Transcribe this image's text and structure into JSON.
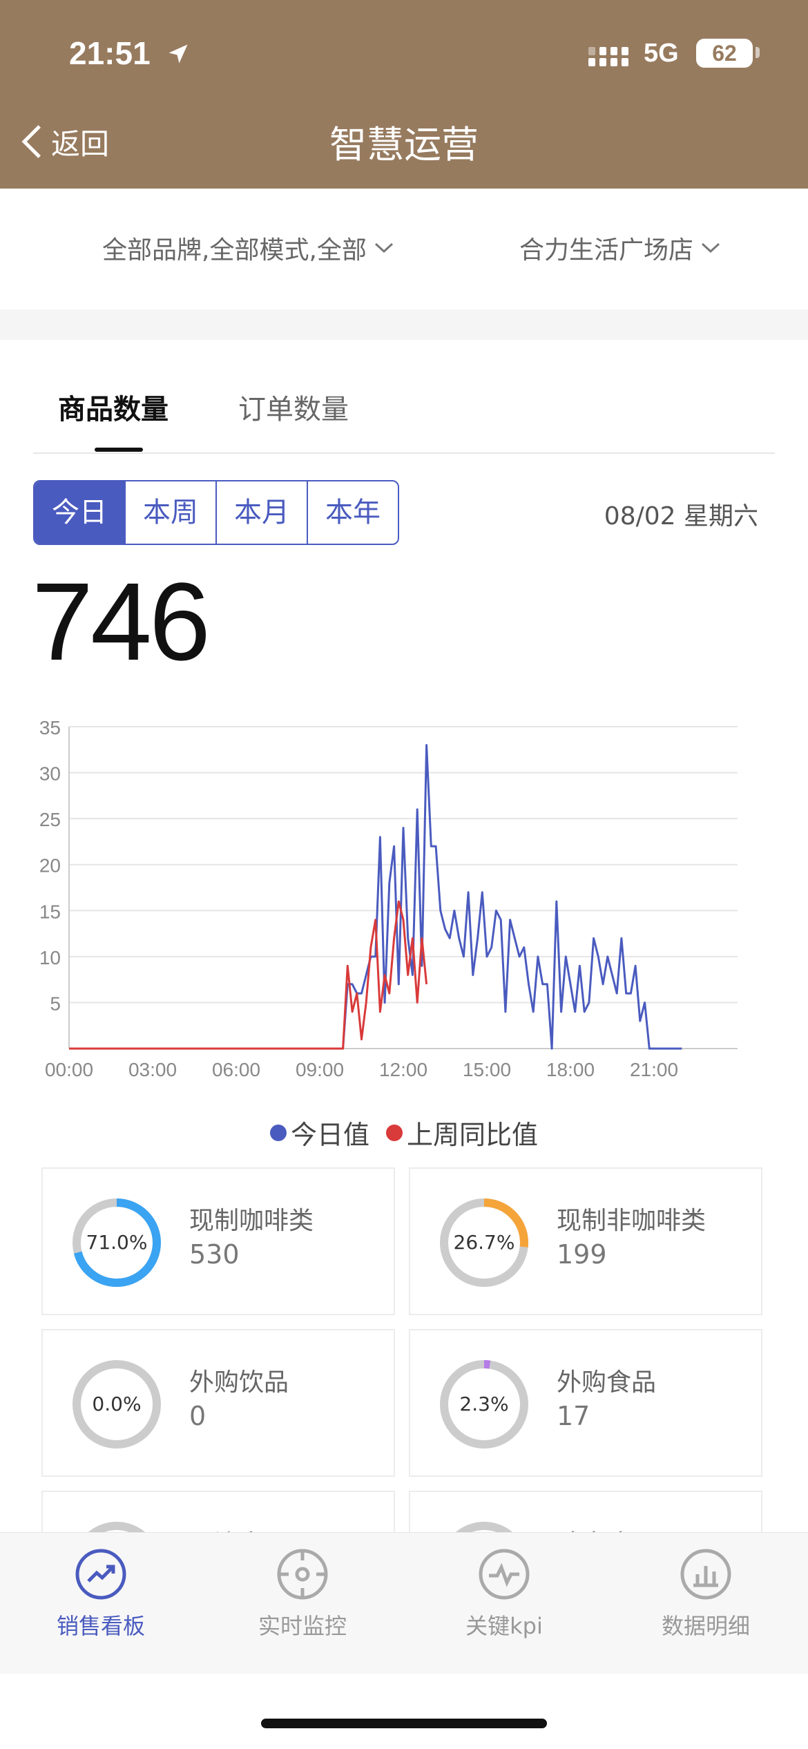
{
  "status_bar": {
    "time": "21:51",
    "network": "5G",
    "battery": "62"
  },
  "header": {
    "back_label": "返回",
    "title": "智慧运营"
  },
  "filters": {
    "brand": "全部品牌,全部模式,全部",
    "store": "合力生活广场店"
  },
  "tabs": [
    {
      "label": "商品数量",
      "active": true
    },
    {
      "label": "订单数量",
      "active": false
    }
  ],
  "periods": [
    {
      "label": "今日",
      "active": true
    },
    {
      "label": "本周",
      "active": false
    },
    {
      "label": "本月",
      "active": false
    },
    {
      "label": "本年",
      "active": false
    }
  ],
  "date": "08/02 星期六",
  "total": "746",
  "chart_data": {
    "type": "line",
    "y_ticks": [
      "35",
      "30",
      "25",
      "20",
      "15",
      "10",
      "5"
    ],
    "ylim": [
      0,
      35
    ],
    "x_ticks": [
      "00:00",
      "03:00",
      "06:00",
      "09:00",
      "12:00",
      "15:00",
      "18:00",
      "21:00"
    ],
    "xlim_minutes": [
      0,
      1440
    ],
    "legend": [
      "今日值",
      "上周同比值"
    ],
    "colors": {
      "today": "#4a5bbf",
      "last_week": "#d93a3a"
    },
    "series": [
      {
        "name": "今日值",
        "color": "#4a5bbf",
        "x": [
          "00:00",
          "09:50",
          "10:00",
          "10:10",
          "10:20",
          "10:30",
          "10:40",
          "10:50",
          "11:00",
          "11:10",
          "11:20",
          "11:30",
          "11:40",
          "11:50",
          "12:00",
          "12:10",
          "12:20",
          "12:30",
          "12:40",
          "12:50",
          "13:00",
          "13:10",
          "13:20",
          "13:30",
          "13:40",
          "13:50",
          "14:00",
          "14:10",
          "14:20",
          "14:30",
          "14:40",
          "14:50",
          "15:00",
          "15:10",
          "15:20",
          "15:30",
          "15:40",
          "15:50",
          "16:00",
          "16:10",
          "16:20",
          "16:30",
          "16:40",
          "16:50",
          "17:00",
          "17:10",
          "17:20",
          "17:30",
          "17:40",
          "17:50",
          "18:00",
          "18:10",
          "18:20",
          "18:30",
          "18:40",
          "18:50",
          "19:00",
          "19:10",
          "19:20",
          "19:30",
          "19:40",
          "19:50",
          "20:00",
          "20:10",
          "20:20",
          "20:30",
          "20:40",
          "20:50",
          "21:00",
          "21:10",
          "21:20",
          "21:30",
          "21:40",
          "21:50",
          "22:00"
        ],
        "y": [
          0,
          0,
          7,
          7,
          6,
          6,
          8,
          10,
          10,
          23,
          5,
          18,
          22,
          7,
          24,
          12,
          8,
          26,
          9,
          33,
          22,
          22,
          15,
          13,
          12,
          15,
          12,
          10,
          17,
          8,
          12,
          17,
          10,
          11,
          15,
          14,
          4,
          14,
          12,
          10,
          11,
          7,
          4,
          10,
          7,
          7,
          0,
          16,
          4,
          10,
          7,
          4,
          9,
          4,
          5,
          12,
          10,
          7,
          10,
          8,
          6,
          12,
          6,
          6,
          9,
          3,
          5,
          0,
          0,
          0,
          0,
          0,
          0,
          0,
          0
        ]
      },
      {
        "name": "上周同比值",
        "color": "#d93a3a",
        "x": [
          "00:00",
          "09:50",
          "10:00",
          "10:10",
          "10:20",
          "10:30",
          "10:40",
          "10:50",
          "11:00",
          "11:10",
          "11:20",
          "11:30",
          "11:40",
          "11:50",
          "12:00",
          "12:10",
          "12:20",
          "12:30",
          "12:40",
          "12:50"
        ],
        "y": [
          0,
          0,
          9,
          4,
          6,
          1,
          5,
          11,
          14,
          4,
          8,
          6,
          12,
          16,
          14,
          8,
          12,
          5,
          12,
          7
        ]
      }
    ]
  },
  "categories": [
    {
      "name": "现制咖啡类",
      "value": "530",
      "percent": 71.0,
      "percent_label": "71.0%",
      "color": "#3aa3f2"
    },
    {
      "name": "现制非咖啡类",
      "value": "199",
      "percent": 26.7,
      "percent_label": "26.7%",
      "color": "#f5a43a"
    },
    {
      "name": "外购饮品",
      "value": "0",
      "percent": 0.0,
      "percent_label": "0.0%",
      "color": "#3aa3f2"
    },
    {
      "name": "外购食品",
      "value": "17",
      "percent": 2.3,
      "percent_label": "2.3%",
      "color": "#b57be8"
    },
    {
      "name": "周边商品",
      "value": "",
      "percent": 0,
      "percent_label": "",
      "color": "#cccccc"
    },
    {
      "name": "瑞幸这调",
      "value": "",
      "percent": 0,
      "percent_label": "",
      "color": "#cccccc"
    }
  ],
  "tabbar": [
    {
      "label": "销售看板",
      "icon": "trend-icon",
      "active": true
    },
    {
      "label": "实时监控",
      "icon": "target-icon",
      "active": false
    },
    {
      "label": "关键kpi",
      "icon": "pulse-icon",
      "active": false
    },
    {
      "label": "数据明细",
      "icon": "bar-chart-icon",
      "active": false
    }
  ]
}
